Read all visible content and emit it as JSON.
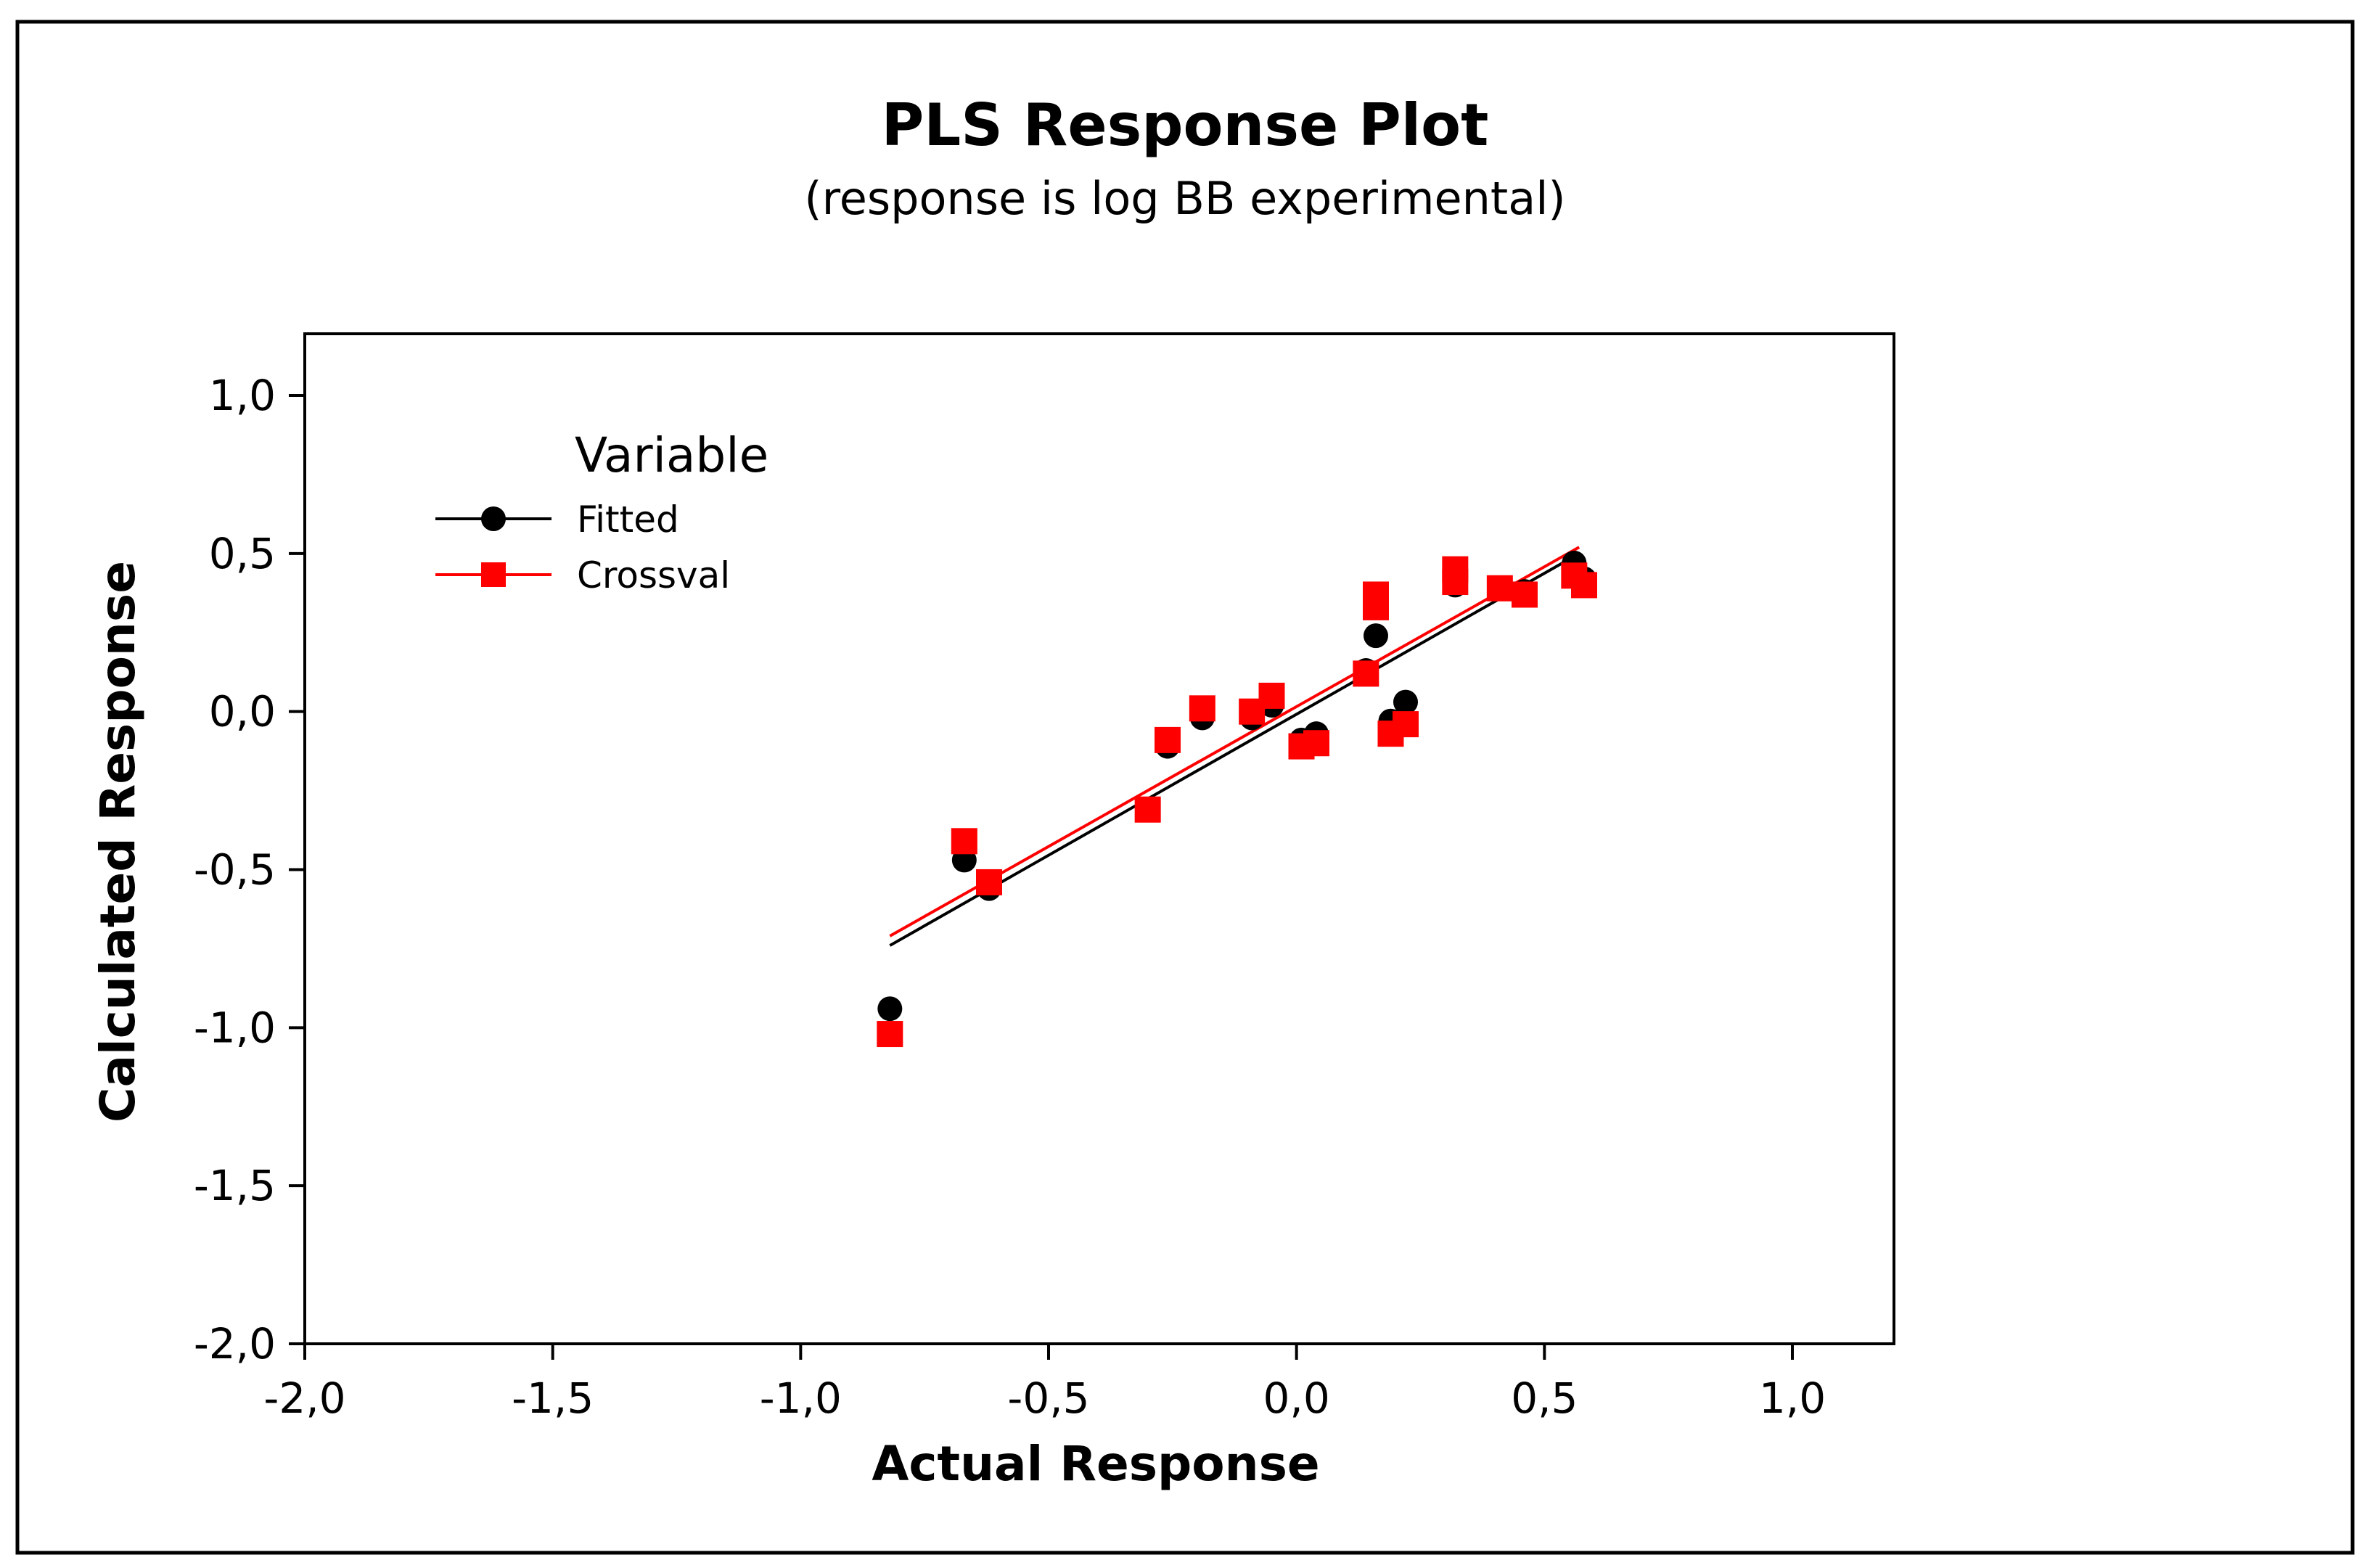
{
  "chart_data": {
    "type": "scatter",
    "title": "PLS Response Plot",
    "subtitle": "(response is log BB experimental)",
    "xlabel": "Actual Response",
    "ylabel": "Calculated Response",
    "xlim": [
      -2.0,
      1.2
    ],
    "ylim": [
      -2.0,
      1.2
    ],
    "x_ticks": [
      -2.0,
      -1.5,
      -1.0,
      -0.5,
      0.0,
      0.5,
      1.0
    ],
    "x_tick_labels": [
      "-2,0",
      "-1,5",
      "-1,0",
      "-0,5",
      "0,0",
      "0,5",
      "1,0"
    ],
    "y_ticks": [
      -2.0,
      -1.5,
      -1.0,
      -0.5,
      0.0,
      0.5,
      1.0
    ],
    "y_tick_labels": [
      "-2,0",
      "-1,5",
      "-1,0",
      "-0,5",
      "0,0",
      "0,5",
      "1,0"
    ],
    "grid": false,
    "legend": {
      "title": "Variable",
      "placement": "top-left",
      "entries": [
        "Fitted",
        "Crossval"
      ]
    },
    "series": [
      {
        "name": "Fitted",
        "color": "#000000",
        "marker": "circle",
        "points": [
          [
            -0.82,
            -0.94
          ],
          [
            -0.67,
            -0.47
          ],
          [
            -0.62,
            -0.56
          ],
          [
            -0.3,
            -0.31
          ],
          [
            -0.26,
            -0.11
          ],
          [
            -0.19,
            -0.02
          ],
          [
            -0.09,
            -0.02
          ],
          [
            -0.05,
            0.02
          ],
          [
            0.01,
            -0.09
          ],
          [
            0.04,
            -0.07
          ],
          [
            0.14,
            0.13
          ],
          [
            0.16,
            0.24
          ],
          [
            0.19,
            -0.03
          ],
          [
            0.22,
            0.03
          ],
          [
            0.32,
            0.4
          ],
          [
            0.41,
            0.39
          ],
          [
            0.46,
            0.38
          ],
          [
            0.56,
            0.47
          ],
          [
            0.58,
            0.42
          ]
        ],
        "fit_line": [
          [
            -0.82,
            -0.74
          ],
          [
            0.57,
            0.5
          ]
        ]
      },
      {
        "name": "Crossval",
        "color": "#ff0000",
        "marker": "square",
        "points": [
          [
            -0.82,
            -1.02
          ],
          [
            -0.67,
            -0.41
          ],
          [
            -0.62,
            -0.54
          ],
          [
            -0.3,
            -0.31
          ],
          [
            -0.26,
            -0.09
          ],
          [
            -0.19,
            0.01
          ],
          [
            -0.09,
            0.0
          ],
          [
            -0.05,
            0.05
          ],
          [
            0.01,
            -0.11
          ],
          [
            0.04,
            -0.1
          ],
          [
            0.14,
            0.12
          ],
          [
            0.16,
            0.33
          ],
          [
            0.16,
            0.37
          ],
          [
            0.19,
            -0.07
          ],
          [
            0.22,
            -0.04
          ],
          [
            0.32,
            0.45
          ],
          [
            0.32,
            0.41
          ],
          [
            0.41,
            0.39
          ],
          [
            0.46,
            0.37
          ],
          [
            0.56,
            0.43
          ],
          [
            0.58,
            0.4
          ]
        ],
        "fit_line": [
          [
            -0.82,
            -0.71
          ],
          [
            0.57,
            0.52
          ]
        ]
      }
    ]
  }
}
